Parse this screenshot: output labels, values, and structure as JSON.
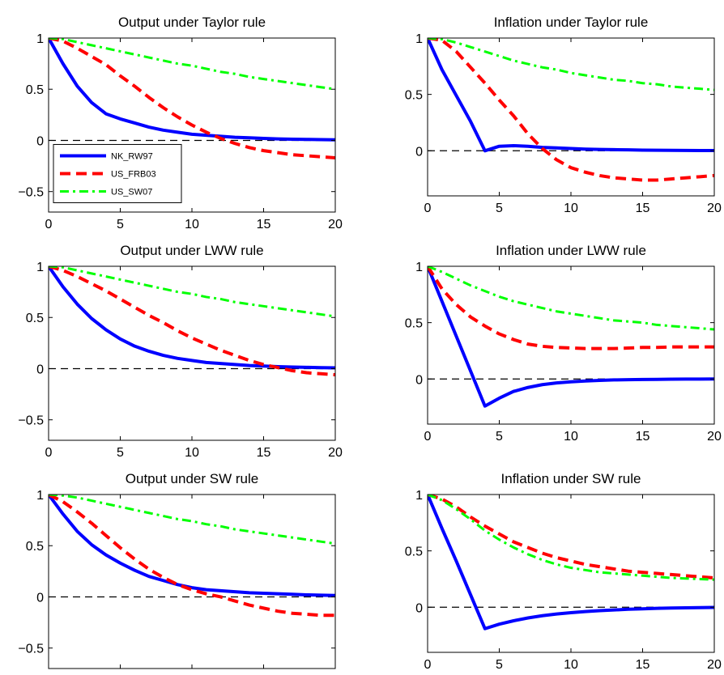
{
  "chart_data": [
    {
      "type": "line",
      "title": "Output under Taylor rule",
      "xlim": [
        0,
        20
      ],
      "ylim": [
        -0.7,
        1
      ],
      "xticks": [
        0,
        5,
        10,
        15,
        20
      ],
      "yticks": [
        1,
        0.5,
        0,
        -0.5
      ],
      "ytick_labels": [
        "1",
        "0.5",
        "0",
        "−0.5"
      ],
      "zero_line": true,
      "legend": {
        "position": "lower-left"
      },
      "x": [
        0,
        1,
        2,
        3,
        4,
        5,
        6,
        7,
        8,
        9,
        10,
        11,
        12,
        13,
        14,
        15,
        16,
        17,
        18,
        19,
        20
      ],
      "series": [
        {
          "name": "NK_RW97",
          "color": "#0000ff",
          "style": "solid",
          "values": [
            1,
            0.75,
            0.53,
            0.37,
            0.26,
            0.21,
            0.17,
            0.13,
            0.1,
            0.08,
            0.06,
            0.05,
            0.04,
            0.03,
            0.025,
            0.02,
            0.015,
            0.012,
            0.01,
            0.008,
            0.006
          ]
        },
        {
          "name": "US_FRB03",
          "color": "#ff0000",
          "style": "dash",
          "values": [
            1,
            0.97,
            0.9,
            0.82,
            0.74,
            0.63,
            0.53,
            0.42,
            0.32,
            0.23,
            0.15,
            0.08,
            0.02,
            -0.03,
            -0.07,
            -0.1,
            -0.12,
            -0.14,
            -0.15,
            -0.16,
            -0.17
          ]
        },
        {
          "name": "US_SW07",
          "color": "#00ff00",
          "style": "dashdot",
          "values": [
            1,
            0.99,
            0.96,
            0.93,
            0.9,
            0.87,
            0.84,
            0.81,
            0.78,
            0.75,
            0.73,
            0.7,
            0.67,
            0.65,
            0.62,
            0.6,
            0.58,
            0.56,
            0.54,
            0.52,
            0.5
          ]
        }
      ]
    },
    {
      "type": "line",
      "title": "Inflation under Taylor rule",
      "xlim": [
        0,
        20
      ],
      "ylim": [
        -0.4,
        1
      ],
      "xticks": [
        0,
        5,
        10,
        15,
        20
      ],
      "yticks": [
        1,
        0.5,
        0
      ],
      "ytick_labels": [
        "1",
        "0.5",
        "0"
      ],
      "zero_line": true,
      "x": [
        0,
        1,
        2,
        3,
        4,
        5,
        6,
        7,
        8,
        9,
        10,
        11,
        12,
        13,
        14,
        15,
        16,
        17,
        18,
        19,
        20
      ],
      "series": [
        {
          "name": "NK_RW97",
          "color": "#0000ff",
          "style": "solid",
          "values": [
            1,
            0.72,
            0.49,
            0.26,
            0.0,
            0.04,
            0.045,
            0.04,
            0.03,
            0.025,
            0.02,
            0.015,
            0.012,
            0.01,
            0.008,
            0.006,
            0.005,
            0.004,
            0.003,
            0.002,
            0.002
          ]
        },
        {
          "name": "US_FRB03",
          "color": "#ff0000",
          "style": "dash",
          "values": [
            1,
            0.98,
            0.88,
            0.74,
            0.6,
            0.45,
            0.31,
            0.15,
            0.02,
            -0.08,
            -0.15,
            -0.19,
            -0.22,
            -0.24,
            -0.25,
            -0.26,
            -0.26,
            -0.25,
            -0.24,
            -0.23,
            -0.22
          ]
        },
        {
          "name": "US_SW07",
          "color": "#00ff00",
          "style": "dashdot",
          "values": [
            1,
            0.99,
            0.96,
            0.92,
            0.88,
            0.84,
            0.8,
            0.77,
            0.74,
            0.72,
            0.69,
            0.67,
            0.65,
            0.63,
            0.62,
            0.6,
            0.59,
            0.57,
            0.56,
            0.55,
            0.54
          ]
        }
      ]
    },
    {
      "type": "line",
      "title": "Output under LWW rule",
      "xlim": [
        0,
        20
      ],
      "ylim": [
        -0.7,
        1
      ],
      "xticks": [
        0,
        5,
        10,
        15,
        20
      ],
      "yticks": [
        1,
        0.5,
        0,
        -0.5
      ],
      "ytick_labels": [
        "1",
        "0.5",
        "0",
        "−0.5"
      ],
      "zero_line": true,
      "x": [
        0,
        1,
        2,
        3,
        4,
        5,
        6,
        7,
        8,
        9,
        10,
        11,
        12,
        13,
        14,
        15,
        16,
        17,
        18,
        19,
        20
      ],
      "series": [
        {
          "name": "NK_RW97",
          "color": "#0000ff",
          "style": "solid",
          "values": [
            1,
            0.8,
            0.63,
            0.49,
            0.38,
            0.29,
            0.22,
            0.17,
            0.13,
            0.1,
            0.08,
            0.06,
            0.05,
            0.04,
            0.03,
            0.025,
            0.02,
            0.016,
            0.013,
            0.01,
            0.008
          ]
        },
        {
          "name": "US_FRB03",
          "color": "#ff0000",
          "style": "dash",
          "values": [
            1,
            0.96,
            0.9,
            0.83,
            0.76,
            0.68,
            0.6,
            0.52,
            0.45,
            0.37,
            0.3,
            0.24,
            0.18,
            0.13,
            0.08,
            0.04,
            0.01,
            -0.02,
            -0.04,
            -0.05,
            -0.06
          ]
        },
        {
          "name": "US_SW07",
          "color": "#00ff00",
          "style": "dashdot",
          "values": [
            1,
            0.99,
            0.96,
            0.93,
            0.9,
            0.87,
            0.84,
            0.81,
            0.78,
            0.75,
            0.73,
            0.7,
            0.68,
            0.65,
            0.63,
            0.61,
            0.59,
            0.57,
            0.55,
            0.53,
            0.51
          ]
        }
      ]
    },
    {
      "type": "line",
      "title": "Inflation under LWW rule",
      "xlim": [
        0,
        20
      ],
      "ylim": [
        -0.4,
        1
      ],
      "xticks": [
        0,
        5,
        10,
        15,
        20
      ],
      "yticks": [
        1,
        0.5,
        0
      ],
      "ytick_labels": [
        "1",
        "0.5",
        "0"
      ],
      "zero_line": true,
      "x": [
        0,
        1,
        2,
        3,
        4,
        5,
        6,
        7,
        8,
        9,
        10,
        11,
        12,
        13,
        14,
        15,
        16,
        17,
        18,
        19,
        20
      ],
      "series": [
        {
          "name": "NK_RW97",
          "color": "#0000ff",
          "style": "solid",
          "values": [
            1,
            0.69,
            0.38,
            0.07,
            -0.24,
            -0.17,
            -0.11,
            -0.075,
            -0.05,
            -0.035,
            -0.025,
            -0.018,
            -0.012,
            -0.008,
            -0.006,
            -0.004,
            -0.003,
            -0.002,
            -0.001,
            -0.001,
            0.0
          ]
        },
        {
          "name": "US_FRB03",
          "color": "#ff0000",
          "style": "dash",
          "values": [
            1,
            0.8,
            0.66,
            0.55,
            0.47,
            0.4,
            0.35,
            0.31,
            0.29,
            0.28,
            0.275,
            0.27,
            0.27,
            0.27,
            0.275,
            0.28,
            0.28,
            0.285,
            0.285,
            0.285,
            0.285
          ]
        },
        {
          "name": "US_SW07",
          "color": "#00ff00",
          "style": "dashdot",
          "values": [
            1,
            0.95,
            0.89,
            0.83,
            0.78,
            0.73,
            0.69,
            0.66,
            0.63,
            0.6,
            0.58,
            0.56,
            0.54,
            0.52,
            0.51,
            0.5,
            0.48,
            0.47,
            0.46,
            0.45,
            0.44
          ]
        }
      ]
    },
    {
      "type": "line",
      "title": "Output under SW rule",
      "xlim": [
        0,
        20
      ],
      "ylim": [
        -0.7,
        1
      ],
      "xticks": [
        0,
        5,
        10,
        15,
        20
      ],
      "yticks": [
        1,
        0.5,
        0,
        -0.5
      ],
      "ytick_labels": [
        "1",
        "0.5",
        "0",
        "−0.5"
      ],
      "zero_line": true,
      "x": [
        0,
        1,
        2,
        3,
        4,
        5,
        6,
        7,
        8,
        9,
        10,
        11,
        12,
        13,
        14,
        15,
        16,
        17,
        18,
        19,
        20
      ],
      "series": [
        {
          "name": "NK_RW97",
          "color": "#0000ff",
          "style": "solid",
          "values": [
            1,
            0.81,
            0.64,
            0.51,
            0.41,
            0.33,
            0.26,
            0.2,
            0.16,
            0.12,
            0.09,
            0.07,
            0.06,
            0.05,
            0.04,
            0.035,
            0.03,
            0.025,
            0.02,
            0.017,
            0.014
          ]
        },
        {
          "name": "US_FRB03",
          "color": "#ff0000",
          "style": "dash",
          "values": [
            1,
            0.93,
            0.83,
            0.72,
            0.6,
            0.48,
            0.37,
            0.27,
            0.19,
            0.12,
            0.07,
            0.03,
            0.0,
            -0.04,
            -0.08,
            -0.11,
            -0.14,
            -0.16,
            -0.17,
            -0.18,
            -0.18
          ]
        },
        {
          "name": "US_SW07",
          "color": "#00ff00",
          "style": "dashdot",
          "values": [
            1,
            0.99,
            0.97,
            0.94,
            0.91,
            0.88,
            0.85,
            0.82,
            0.79,
            0.76,
            0.74,
            0.71,
            0.69,
            0.66,
            0.64,
            0.62,
            0.6,
            0.58,
            0.56,
            0.54,
            0.52
          ]
        }
      ]
    },
    {
      "type": "line",
      "title": "Inflation under SW rule",
      "xlim": [
        0,
        20
      ],
      "ylim": [
        -0.4,
        1
      ],
      "xticks": [
        0,
        5,
        10,
        15,
        20
      ],
      "yticks": [
        1,
        0.5,
        0
      ],
      "ytick_labels": [
        "1",
        "0.5",
        "0"
      ],
      "zero_line": true,
      "x": [
        0,
        1,
        2,
        3,
        4,
        5,
        6,
        7,
        8,
        9,
        10,
        11,
        12,
        13,
        14,
        15,
        16,
        17,
        18,
        19,
        20
      ],
      "series": [
        {
          "name": "NK_RW97",
          "color": "#0000ff",
          "style": "solid",
          "values": [
            1,
            0.7,
            0.41,
            0.11,
            -0.19,
            -0.15,
            -0.12,
            -0.095,
            -0.075,
            -0.06,
            -0.048,
            -0.038,
            -0.03,
            -0.024,
            -0.018,
            -0.014,
            -0.01,
            -0.007,
            -0.005,
            -0.003,
            -0.002
          ]
        },
        {
          "name": "US_FRB03",
          "color": "#ff0000",
          "style": "dash",
          "values": [
            1,
            0.96,
            0.89,
            0.8,
            0.72,
            0.65,
            0.58,
            0.53,
            0.48,
            0.44,
            0.41,
            0.38,
            0.36,
            0.34,
            0.32,
            0.31,
            0.3,
            0.29,
            0.28,
            0.27,
            0.26
          ]
        },
        {
          "name": "US_SW07",
          "color": "#00ff00",
          "style": "dashdot",
          "values": [
            1,
            0.95,
            0.87,
            0.78,
            0.68,
            0.6,
            0.53,
            0.47,
            0.42,
            0.38,
            0.35,
            0.33,
            0.31,
            0.3,
            0.29,
            0.28,
            0.27,
            0.26,
            0.255,
            0.25,
            0.245
          ]
        }
      ]
    }
  ]
}
